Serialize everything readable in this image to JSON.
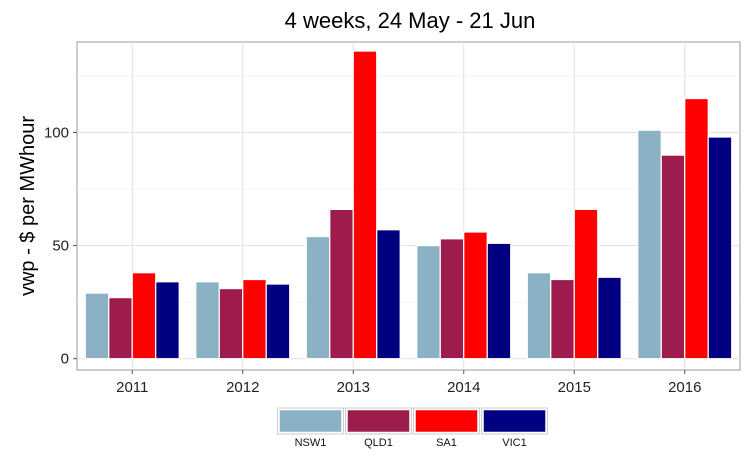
{
  "chart_data": {
    "type": "bar",
    "title": "4 weeks, 24 May - 21 Jun",
    "xlabel": "",
    "ylabel": "vwp - $ per MWhour",
    "categories": [
      "2011",
      "2012",
      "2013",
      "2014",
      "2015",
      "2016"
    ],
    "ylim": [
      -5,
      140
    ],
    "yticks": [
      0,
      50,
      100
    ],
    "grid": true,
    "legend_position": "bottom",
    "series": [
      {
        "name": "NSW1",
        "color": "#8AB2C4",
        "values": [
          29,
          34,
          54,
          50,
          38,
          101
        ]
      },
      {
        "name": "QLD1",
        "color": "#9E1C4D",
        "values": [
          27,
          31,
          66,
          53,
          35,
          90
        ]
      },
      {
        "name": "SA1",
        "color": "#FF0000",
        "values": [
          38,
          35,
          136,
          56,
          66,
          115
        ]
      },
      {
        "name": "VIC1",
        "color": "#000080",
        "values": [
          34,
          33,
          57,
          51,
          36,
          98
        ]
      }
    ]
  }
}
